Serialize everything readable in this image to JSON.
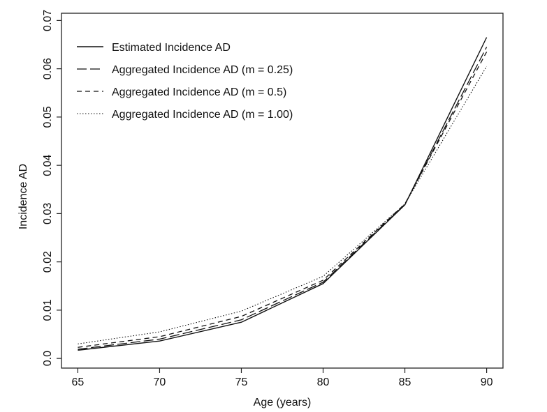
{
  "chart_data": {
    "type": "line",
    "title": "",
    "xlabel": "Age (years)",
    "ylabel": "Incidence AD",
    "xlim": [
      64,
      91
    ],
    "ylim": [
      -0.002,
      0.0715
    ],
    "x_ticks": [
      65,
      70,
      75,
      80,
      85,
      90
    ],
    "x_tick_labels": [
      "65",
      "70",
      "75",
      "80",
      "85",
      "90"
    ],
    "y_ticks": [
      0.0,
      0.01,
      0.02,
      0.03,
      0.04,
      0.05,
      0.06,
      0.07
    ],
    "y_tick_labels": [
      "0.0",
      "0.01",
      "0.02",
      "0.03",
      "0.04",
      "0.05",
      "0.06",
      "0.07"
    ],
    "grid": false,
    "legend_position": "top-left",
    "x": [
      65,
      70,
      75,
      80,
      85,
      90
    ],
    "series": [
      {
        "name": "Estimated Incidence AD",
        "style": "solid",
        "values": [
          0.0017,
          0.0036,
          0.0075,
          0.0155,
          0.0318,
          0.0665
        ]
      },
      {
        "name": "Aggregated Incidence AD (m = 0.25)",
        "style": "longdash",
        "values": [
          0.0019,
          0.004,
          0.008,
          0.0158,
          0.0319,
          0.0645
        ]
      },
      {
        "name": "Aggregated Incidence AD (m = 0.5)",
        "style": "dashed",
        "values": [
          0.0023,
          0.0045,
          0.0087,
          0.0162,
          0.032,
          0.0635
        ]
      },
      {
        "name": "Aggregated Incidence AD (m = 1.00)",
        "style": "dotted",
        "values": [
          0.003,
          0.0055,
          0.0098,
          0.017,
          0.032,
          0.0605
        ]
      }
    ]
  }
}
